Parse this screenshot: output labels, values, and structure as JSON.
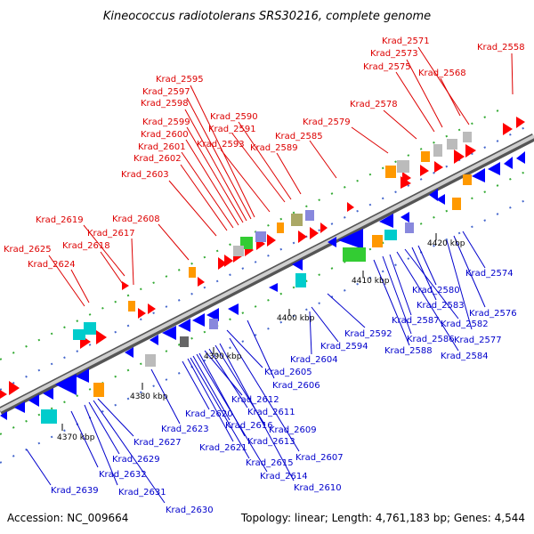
{
  "title": "Kineococcus radiotolerans SRS30216, complete genome",
  "accession": "Accession: NC_009664",
  "summary": "Topology: linear; Length: 4,761,183 bp; Genes: 4,544",
  "colors": {
    "forward_label": "#dd0000",
    "reverse_label": "#0000cc",
    "backbone": "#999999",
    "forward_gene": "#ff0000",
    "reverse_gene": "#0000ff",
    "ortholog_orange": "#ff9900",
    "ortholog_cyan": "#00cccc",
    "ortholog_green": "#33cc33",
    "ortholog_gray": "#bbbbbb",
    "ortholog_olive": "#aaa866",
    "ortholog_purple": "#8888dd",
    "tick_green": "#009900"
  },
  "scale_ticks": [
    {
      "label": "4370 kbp"
    },
    {
      "label": "4380 kbp"
    },
    {
      "label": "4390 kbp"
    },
    {
      "label": "4400 kbp"
    },
    {
      "label": "4410 kbp"
    },
    {
      "label": "4420 kbp"
    }
  ],
  "forward_labels": [
    "Krad_2571",
    "Krad_2558",
    "Krad_2573",
    "Krad_2575",
    "Krad_2568",
    "Krad_2578",
    "Krad_2579",
    "Krad_2585",
    "Krad_2589",
    "Krad_2590",
    "Krad_2591",
    "Krad_2593",
    "Krad_2595",
    "Krad_2597",
    "Krad_2598",
    "Krad_2599",
    "Krad_2600",
    "Krad_2601",
    "Krad_2602",
    "Krad_2603",
    "Krad_2608",
    "Krad_2619",
    "Krad_2617",
    "Krad_2618",
    "Krad_2625",
    "Krad_2624"
  ],
  "reverse_labels": [
    "Krad_2574",
    "Krad_2576",
    "Krad_2577",
    "Krad_2580",
    "Krad_2583",
    "Krad_2582",
    "Krad_2584",
    "Krad_2587",
    "Krad_2586",
    "Krad_2588",
    "Krad_2592",
    "Krad_2594",
    "Krad_2604",
    "Krad_2605",
    "Krad_2606",
    "Krad_2612",
    "Krad_2611",
    "Krad_2609",
    "Krad_2620",
    "Krad_2616",
    "Krad_2613",
    "Krad_2607",
    "Krad_2623",
    "Krad_2621",
    "Krad_2615",
    "Krad_2614",
    "Krad_2610",
    "Krad_2627",
    "Krad_2629",
    "Krad_2632",
    "Krad_2631",
    "Krad_2639",
    "Krad_2630"
  ]
}
